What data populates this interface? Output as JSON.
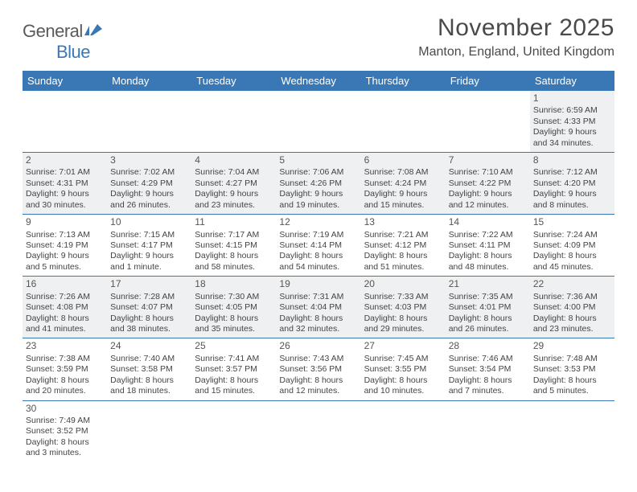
{
  "logo": {
    "text1": "General",
    "text2": "Blue"
  },
  "title": "November 2025",
  "location": "Manton, England, United Kingdom",
  "colors": {
    "header_bg": "#3a78b5",
    "header_text": "#ffffff",
    "border": "#3a78b5",
    "shade": "#eef0f1",
    "text": "#444444"
  },
  "day_names": [
    "Sunday",
    "Monday",
    "Tuesday",
    "Wednesday",
    "Thursday",
    "Friday",
    "Saturday"
  ],
  "weeks": [
    [
      {
        "blank": true
      },
      {
        "blank": true
      },
      {
        "blank": true
      },
      {
        "blank": true
      },
      {
        "blank": true
      },
      {
        "blank": true
      },
      {
        "n": "1",
        "sr": "Sunrise: 6:59 AM",
        "ss": "Sunset: 4:33 PM",
        "d1": "Daylight: 9 hours",
        "d2": "and 34 minutes.",
        "shade": true
      }
    ],
    [
      {
        "n": "2",
        "sr": "Sunrise: 7:01 AM",
        "ss": "Sunset: 4:31 PM",
        "d1": "Daylight: 9 hours",
        "d2": "and 30 minutes.",
        "shade": true
      },
      {
        "n": "3",
        "sr": "Sunrise: 7:02 AM",
        "ss": "Sunset: 4:29 PM",
        "d1": "Daylight: 9 hours",
        "d2": "and 26 minutes.",
        "shade": true
      },
      {
        "n": "4",
        "sr": "Sunrise: 7:04 AM",
        "ss": "Sunset: 4:27 PM",
        "d1": "Daylight: 9 hours",
        "d2": "and 23 minutes.",
        "shade": true
      },
      {
        "n": "5",
        "sr": "Sunrise: 7:06 AM",
        "ss": "Sunset: 4:26 PM",
        "d1": "Daylight: 9 hours",
        "d2": "and 19 minutes.",
        "shade": true
      },
      {
        "n": "6",
        "sr": "Sunrise: 7:08 AM",
        "ss": "Sunset: 4:24 PM",
        "d1": "Daylight: 9 hours",
        "d2": "and 15 minutes.",
        "shade": true
      },
      {
        "n": "7",
        "sr": "Sunrise: 7:10 AM",
        "ss": "Sunset: 4:22 PM",
        "d1": "Daylight: 9 hours",
        "d2": "and 12 minutes.",
        "shade": true
      },
      {
        "n": "8",
        "sr": "Sunrise: 7:12 AM",
        "ss": "Sunset: 4:20 PM",
        "d1": "Daylight: 9 hours",
        "d2": "and 8 minutes.",
        "shade": true
      }
    ],
    [
      {
        "n": "9",
        "sr": "Sunrise: 7:13 AM",
        "ss": "Sunset: 4:19 PM",
        "d1": "Daylight: 9 hours",
        "d2": "and 5 minutes."
      },
      {
        "n": "10",
        "sr": "Sunrise: 7:15 AM",
        "ss": "Sunset: 4:17 PM",
        "d1": "Daylight: 9 hours",
        "d2": "and 1 minute."
      },
      {
        "n": "11",
        "sr": "Sunrise: 7:17 AM",
        "ss": "Sunset: 4:15 PM",
        "d1": "Daylight: 8 hours",
        "d2": "and 58 minutes."
      },
      {
        "n": "12",
        "sr": "Sunrise: 7:19 AM",
        "ss": "Sunset: 4:14 PM",
        "d1": "Daylight: 8 hours",
        "d2": "and 54 minutes."
      },
      {
        "n": "13",
        "sr": "Sunrise: 7:21 AM",
        "ss": "Sunset: 4:12 PM",
        "d1": "Daylight: 8 hours",
        "d2": "and 51 minutes."
      },
      {
        "n": "14",
        "sr": "Sunrise: 7:22 AM",
        "ss": "Sunset: 4:11 PM",
        "d1": "Daylight: 8 hours",
        "d2": "and 48 minutes."
      },
      {
        "n": "15",
        "sr": "Sunrise: 7:24 AM",
        "ss": "Sunset: 4:09 PM",
        "d1": "Daylight: 8 hours",
        "d2": "and 45 minutes."
      }
    ],
    [
      {
        "n": "16",
        "sr": "Sunrise: 7:26 AM",
        "ss": "Sunset: 4:08 PM",
        "d1": "Daylight: 8 hours",
        "d2": "and 41 minutes.",
        "shade": true
      },
      {
        "n": "17",
        "sr": "Sunrise: 7:28 AM",
        "ss": "Sunset: 4:07 PM",
        "d1": "Daylight: 8 hours",
        "d2": "and 38 minutes.",
        "shade": true
      },
      {
        "n": "18",
        "sr": "Sunrise: 7:30 AM",
        "ss": "Sunset: 4:05 PM",
        "d1": "Daylight: 8 hours",
        "d2": "and 35 minutes.",
        "shade": true
      },
      {
        "n": "19",
        "sr": "Sunrise: 7:31 AM",
        "ss": "Sunset: 4:04 PM",
        "d1": "Daylight: 8 hours",
        "d2": "and 32 minutes.",
        "shade": true
      },
      {
        "n": "20",
        "sr": "Sunrise: 7:33 AM",
        "ss": "Sunset: 4:03 PM",
        "d1": "Daylight: 8 hours",
        "d2": "and 29 minutes.",
        "shade": true
      },
      {
        "n": "21",
        "sr": "Sunrise: 7:35 AM",
        "ss": "Sunset: 4:01 PM",
        "d1": "Daylight: 8 hours",
        "d2": "and 26 minutes.",
        "shade": true
      },
      {
        "n": "22",
        "sr": "Sunrise: 7:36 AM",
        "ss": "Sunset: 4:00 PM",
        "d1": "Daylight: 8 hours",
        "d2": "and 23 minutes.",
        "shade": true
      }
    ],
    [
      {
        "n": "23",
        "sr": "Sunrise: 7:38 AM",
        "ss": "Sunset: 3:59 PM",
        "d1": "Daylight: 8 hours",
        "d2": "and 20 minutes."
      },
      {
        "n": "24",
        "sr": "Sunrise: 7:40 AM",
        "ss": "Sunset: 3:58 PM",
        "d1": "Daylight: 8 hours",
        "d2": "and 18 minutes."
      },
      {
        "n": "25",
        "sr": "Sunrise: 7:41 AM",
        "ss": "Sunset: 3:57 PM",
        "d1": "Daylight: 8 hours",
        "d2": "and 15 minutes."
      },
      {
        "n": "26",
        "sr": "Sunrise: 7:43 AM",
        "ss": "Sunset: 3:56 PM",
        "d1": "Daylight: 8 hours",
        "d2": "and 12 minutes."
      },
      {
        "n": "27",
        "sr": "Sunrise: 7:45 AM",
        "ss": "Sunset: 3:55 PM",
        "d1": "Daylight: 8 hours",
        "d2": "and 10 minutes."
      },
      {
        "n": "28",
        "sr": "Sunrise: 7:46 AM",
        "ss": "Sunset: 3:54 PM",
        "d1": "Daylight: 8 hours",
        "d2": "and 7 minutes."
      },
      {
        "n": "29",
        "sr": "Sunrise: 7:48 AM",
        "ss": "Sunset: 3:53 PM",
        "d1": "Daylight: 8 hours",
        "d2": "and 5 minutes."
      }
    ],
    [
      {
        "n": "30",
        "sr": "Sunrise: 7:49 AM",
        "ss": "Sunset: 3:52 PM",
        "d1": "Daylight: 8 hours",
        "d2": "and 3 minutes."
      },
      {
        "blank": true
      },
      {
        "blank": true
      },
      {
        "blank": true
      },
      {
        "blank": true
      },
      {
        "blank": true
      },
      {
        "blank": true
      }
    ]
  ]
}
